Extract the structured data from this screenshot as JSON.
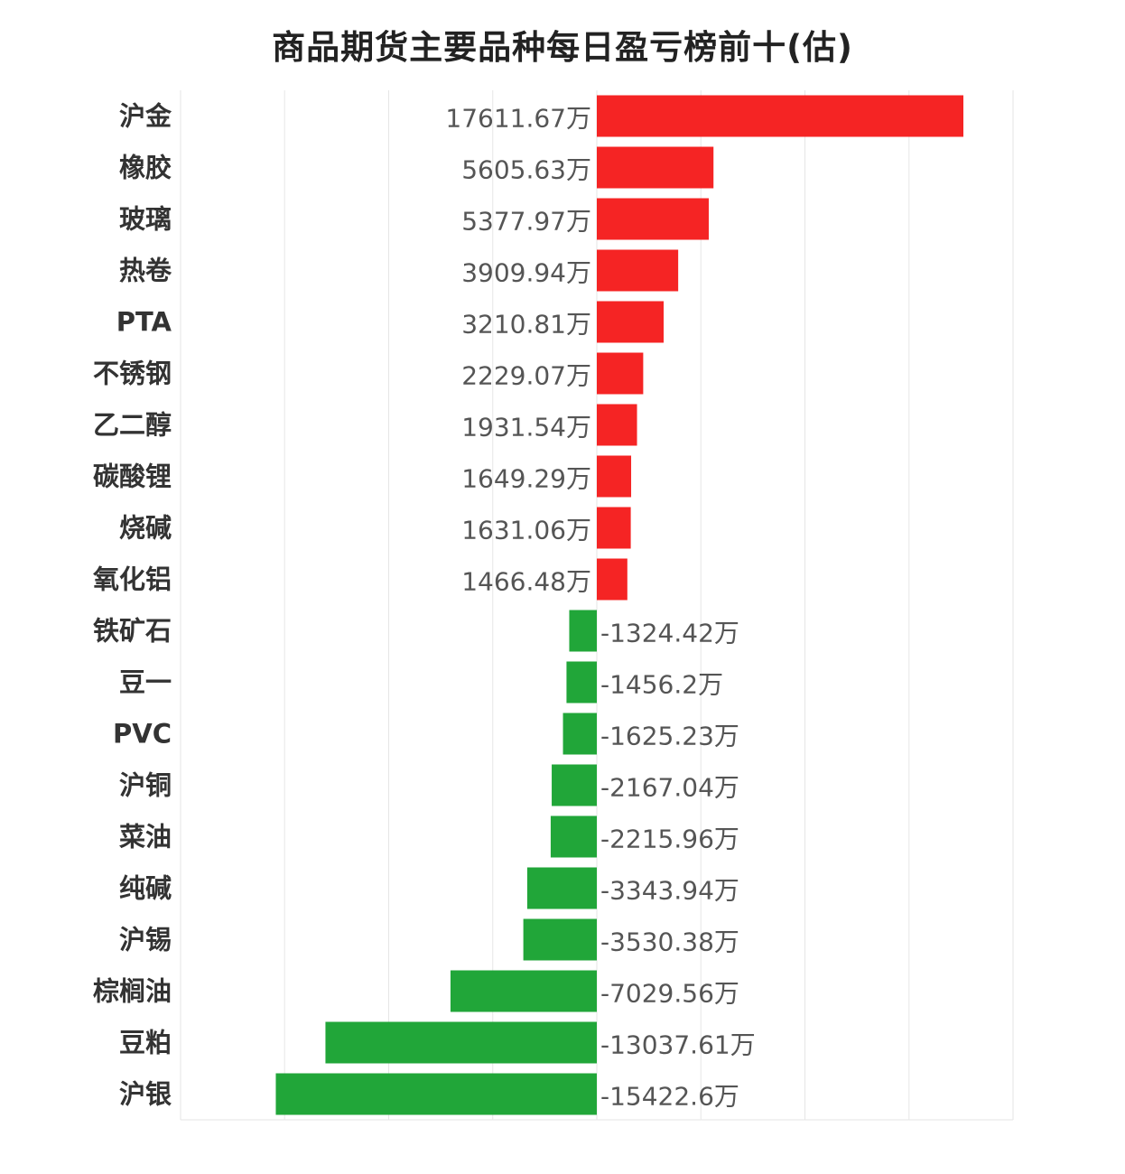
{
  "chart_data": {
    "type": "bar",
    "orientation": "horizontal",
    "title": "商品期货主要品种每日盈亏榜前十(估)",
    "unit": "万",
    "categories": [
      "沪金",
      "橡胶",
      "玻璃",
      "热卷",
      "PTA",
      "不锈钢",
      "乙二醇",
      "碳酸锂",
      "烧碱",
      "氧化铝",
      "铁矿石",
      "豆一",
      "PVC",
      "沪铜",
      "菜油",
      "纯碱",
      "沪锡",
      "棕榈油",
      "豆粕",
      "沪银"
    ],
    "values": [
      17611.67,
      5605.63,
      5377.97,
      3909.94,
      3210.81,
      2229.07,
      1931.54,
      1649.29,
      1631.06,
      1466.48,
      -1324.42,
      -1456.2,
      -1625.23,
      -2167.04,
      -2215.96,
      -3343.94,
      -3530.38,
      -7029.56,
      -13037.61,
      -15422.6
    ],
    "value_labels": [
      "17611.67万",
      "5605.63万",
      "5377.97万",
      "3909.94万",
      "3210.81万",
      "2229.07万",
      "1931.54万",
      "1649.29万",
      "1631.06万",
      "1466.48万",
      "-1324.42万",
      "-1456.2万",
      "-1625.23万",
      "-2167.04万",
      "-2215.96万",
      "-3343.94万",
      "-3530.38万",
      "-7029.56万",
      "-13037.61万",
      "-15422.6万"
    ],
    "xlim": [
      -20000,
      20000
    ],
    "grid": true,
    "positive_color": "#f52424",
    "negative_color": "#21a639"
  }
}
